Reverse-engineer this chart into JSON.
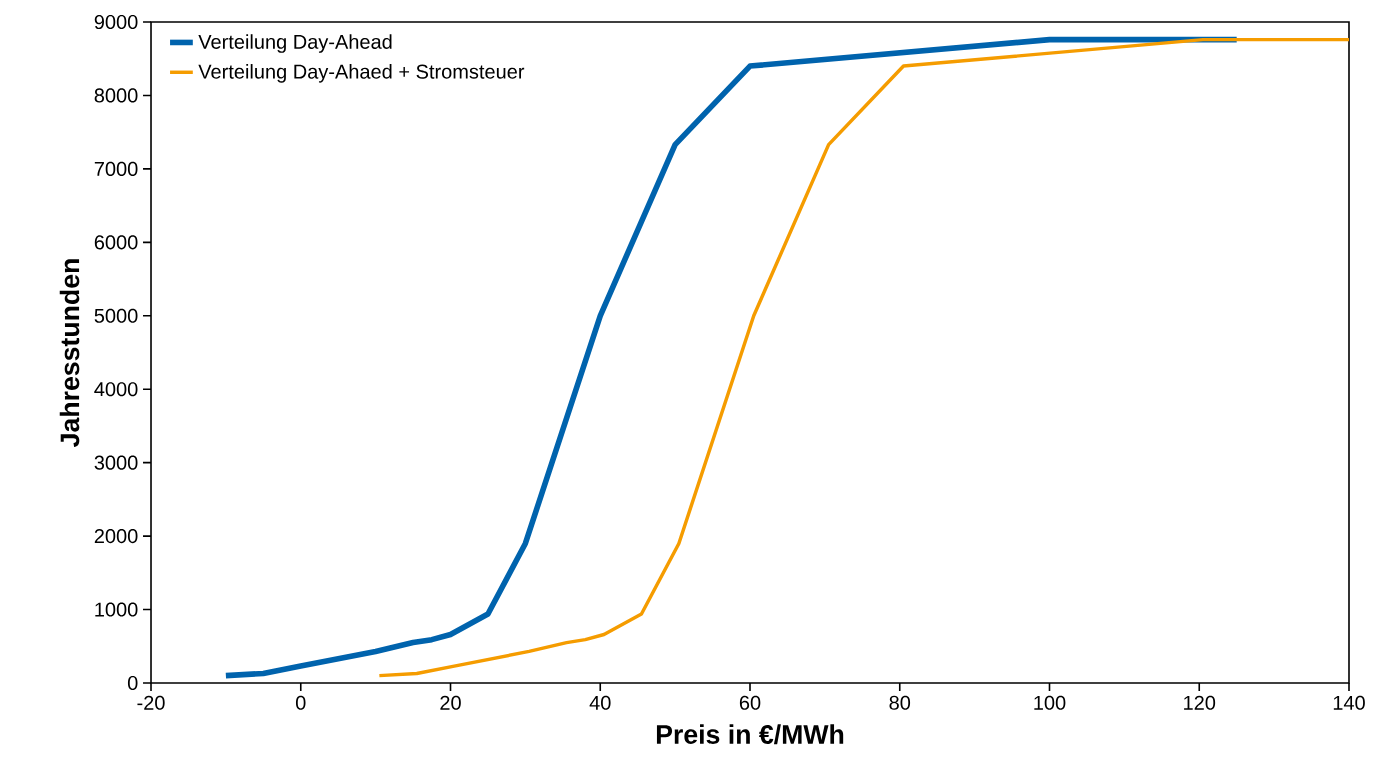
{
  "chart_data": {
    "type": "line",
    "xlabel": "Preis in €/MWh",
    "ylabel": "Jahresstunden",
    "xlim": [
      -20,
      140
    ],
    "xticks": [
      -20,
      0,
      20,
      40,
      60,
      80,
      100,
      120,
      140
    ],
    "ylim": [
      0,
      9000
    ],
    "yticks": [
      0,
      1000,
      2000,
      3000,
      4000,
      5000,
      6000,
      7000,
      8000,
      9000
    ],
    "grid": false,
    "legend": "top left",
    "marker": "none",
    "line_style": "solid",
    "series": [
      {
        "name": "Verteilung Day-Ahead",
        "color": "#0063ad",
        "x": [
          -10,
          -5,
          0,
          10,
          15,
          17.5,
          20,
          25,
          30,
          40,
          50,
          60,
          100,
          125
        ],
        "values": [
          100,
          130,
          230,
          430,
          550,
          590,
          660,
          940,
          1900,
          5000,
          7330,
          8400,
          8760,
          8760
        ]
      },
      {
        "name": "Verteilung Day-Ahaed + Stromsteuer",
        "color": "#f59c00",
        "x": [
          10.5,
          15.5,
          20.5,
          30.5,
          35.5,
          38,
          40.5,
          45.5,
          50.5,
          60.5,
          70.5,
          80.5,
          120.5,
          140
        ],
        "values": [
          100,
          130,
          230,
          430,
          550,
          590,
          660,
          940,
          1900,
          5000,
          7330,
          8400,
          8760,
          8760
        ]
      }
    ]
  }
}
